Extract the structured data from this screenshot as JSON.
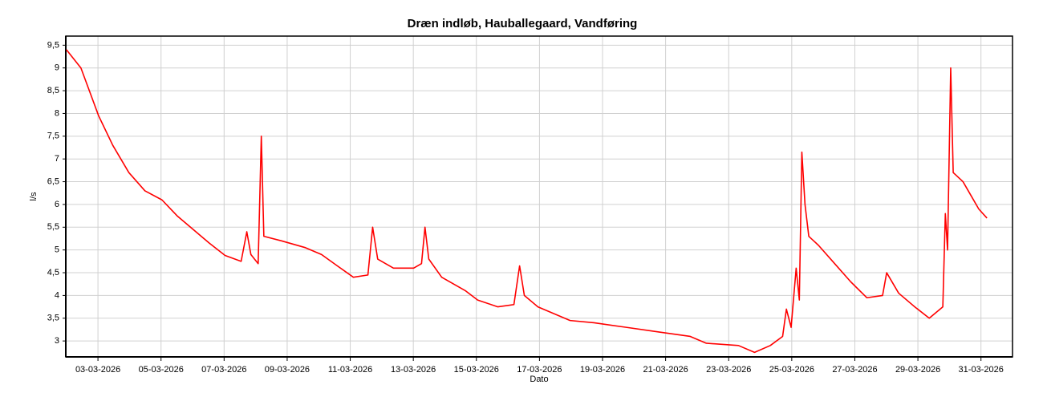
{
  "chart_data": {
    "type": "line",
    "title": "Dræn indløb, Hauballegaard, Vandføring",
    "x_label": "Dato",
    "y_label": "l/s",
    "color": "#ff0000",
    "grid": true,
    "x": [
      2.0,
      2.46,
      3.02,
      3.47,
      3.98,
      4.49,
      5.03,
      5.51,
      6.02,
      6.53,
      7.03,
      7.54,
      7.72,
      7.85,
      8.08,
      8.18,
      8.26,
      8.82,
      9.58,
      10.09,
      10.59,
      11.1,
      11.56,
      11.71,
      11.87,
      12.37,
      13.01,
      13.26,
      13.37,
      13.49,
      13.9,
      14.66,
      15.04,
      15.68,
      16.19,
      16.37,
      16.52,
      16.95,
      17.46,
      17.97,
      18.73,
      19.75,
      20.76,
      21.78,
      22.29,
      23.31,
      23.82,
      24.32,
      24.71,
      24.83,
      24.98,
      25.14,
      25.24,
      25.32,
      25.42,
      25.54,
      25.85,
      26.36,
      26.87,
      27.38,
      27.88,
      28.01,
      28.39,
      28.9,
      29.36,
      29.79,
      29.87,
      29.94,
      30.04,
      30.12,
      30.43,
      30.68,
      30.93,
      31.19
    ],
    "values": [
      9.4,
      9.0,
      7.95,
      7.3,
      6.7,
      6.3,
      6.1,
      5.75,
      5.45,
      5.15,
      4.88,
      4.75,
      5.4,
      4.9,
      4.7,
      7.5,
      5.3,
      5.2,
      5.05,
      4.9,
      4.65,
      4.4,
      4.45,
      5.5,
      4.8,
      4.6,
      4.6,
      4.7,
      5.5,
      4.8,
      4.4,
      4.1,
      3.9,
      3.75,
      3.8,
      4.65,
      4.0,
      3.75,
      3.6,
      3.45,
      3.4,
      3.3,
      3.2,
      3.1,
      2.95,
      2.9,
      2.75,
      2.9,
      3.1,
      3.7,
      3.3,
      4.6,
      3.9,
      7.15,
      6.0,
      5.3,
      5.1,
      4.7,
      4.3,
      3.95,
      4.0,
      4.5,
      4.05,
      3.75,
      3.5,
      3.75,
      5.8,
      5.0,
      9.0,
      6.7,
      6.5,
      6.2,
      5.9,
      5.7
    ],
    "xlim": [
      1.98,
      32.0
    ],
    "xticks": [
      {
        "value": 3,
        "label": "03-03-2026"
      },
      {
        "value": 5,
        "label": "05-03-2026"
      },
      {
        "value": 7,
        "label": "07-03-2026"
      },
      {
        "value": 9,
        "label": "09-03-2026"
      },
      {
        "value": 11,
        "label": "11-03-2026"
      },
      {
        "value": 13,
        "label": "13-03-2026"
      },
      {
        "value": 15,
        "label": "15-03-2026"
      },
      {
        "value": 17,
        "label": "17-03-2026"
      },
      {
        "value": 19,
        "label": "19-03-2026"
      },
      {
        "value": 21,
        "label": "21-03-2026"
      },
      {
        "value": 23,
        "label": "23-03-2026"
      },
      {
        "value": 25,
        "label": "25-03-2026"
      },
      {
        "value": 27,
        "label": "27-03-2026"
      },
      {
        "value": 29,
        "label": "29-03-2026"
      },
      {
        "value": 31,
        "label": "31-03-2026"
      }
    ],
    "ylim": [
      2.65,
      9.7
    ],
    "yticks": [
      3,
      {
        "value": 3.5,
        "label": "3,5"
      },
      4,
      {
        "value": 4.5,
        "label": "4,5"
      },
      5,
      {
        "value": 5.5,
        "label": "5,5"
      },
      6,
      {
        "value": 6.5,
        "label": "6,5"
      },
      7,
      {
        "value": 7.5,
        "label": "7,5"
      },
      8,
      {
        "value": 8.5,
        "label": "8,5"
      },
      9,
      {
        "value": 9.5,
        "label": "9,5"
      }
    ]
  }
}
